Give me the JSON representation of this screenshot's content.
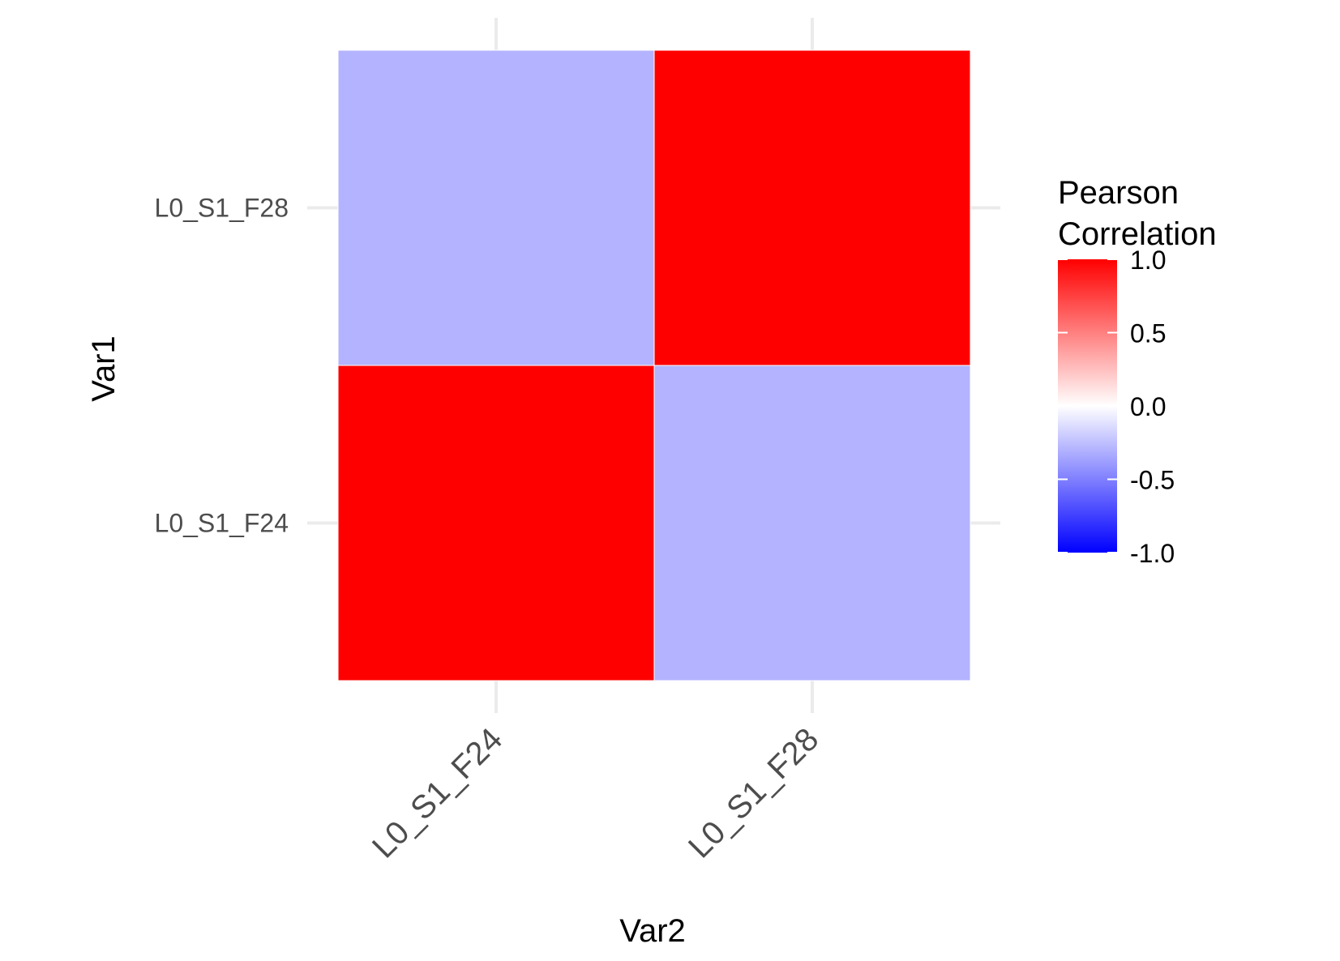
{
  "chart_data": {
    "type": "heatmap",
    "title": "",
    "xlabel": "Var2",
    "ylabel": "Var1",
    "x_categories": [
      "L0_S1_F24",
      "L0_S1_F28"
    ],
    "y_categories": [
      "L0_S1_F24",
      "L0_S1_F28"
    ],
    "cells": [
      {
        "x": "L0_S1_F24",
        "y": "L0_S1_F24",
        "value": 1.0
      },
      {
        "x": "L0_S1_F28",
        "y": "L0_S1_F24",
        "value": -0.3
      },
      {
        "x": "L0_S1_F24",
        "y": "L0_S1_F28",
        "value": -0.3
      },
      {
        "x": "L0_S1_F28",
        "y": "L0_S1_F28",
        "value": 1.0
      }
    ],
    "legend": {
      "title_lines": [
        "Pearson",
        "Correlation"
      ],
      "ticks": [
        1.0,
        0.5,
        0.0,
        -0.5,
        -1.0
      ],
      "tick_labels": [
        "1.0",
        "0.5",
        "0.0",
        "-0.5",
        "-1.0"
      ],
      "range": [
        -1.0,
        1.0
      ],
      "placement": "right"
    },
    "colors": {
      "low": "#0000ff",
      "mid": "#ffffff",
      "high": "#ff0000",
      "grid": "#ebebeb",
      "tick_text": "#4d4d4d",
      "axis_title": "#000000"
    },
    "grid": true
  }
}
